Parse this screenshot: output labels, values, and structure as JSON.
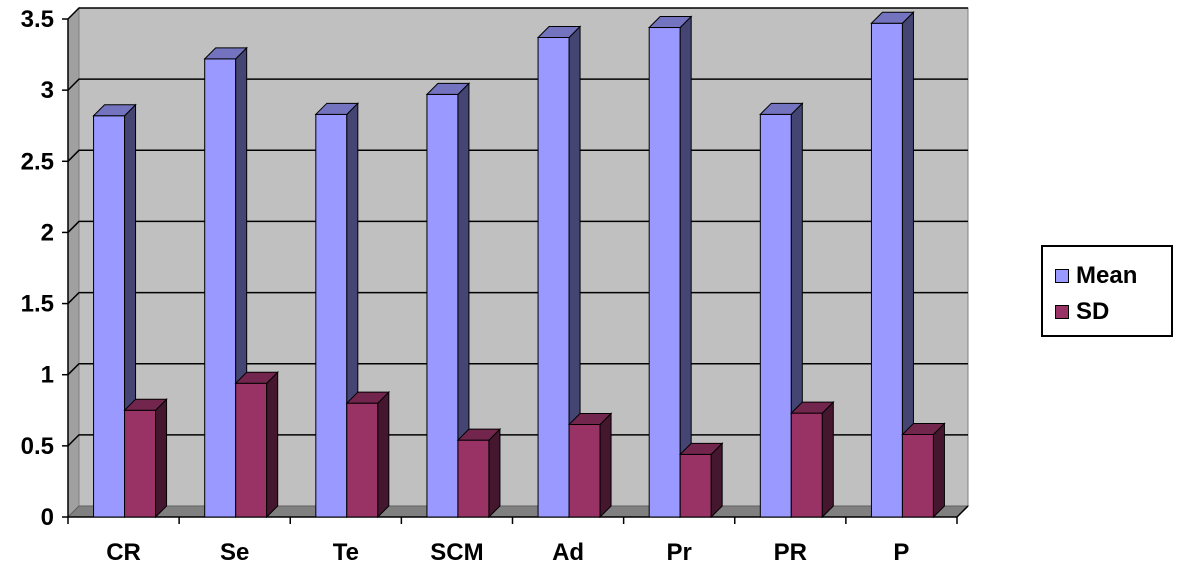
{
  "chart_data": {
    "type": "bar",
    "categories": [
      "CR",
      "Se",
      "Te",
      "SCM",
      "Ad",
      "Pr",
      "PR",
      "P"
    ],
    "series": [
      {
        "name": "Mean",
        "values": [
          2.82,
          3.22,
          2.83,
          2.97,
          3.37,
          3.44,
          2.83,
          3.47
        ],
        "color": "#9999ff"
      },
      {
        "name": "SD",
        "values": [
          0.75,
          0.94,
          0.8,
          0.54,
          0.65,
          0.44,
          0.73,
          0.58
        ],
        "color": "#993366"
      }
    ],
    "title": "",
    "xlabel": "",
    "ylabel": "",
    "ylim": [
      0,
      3.5
    ],
    "yticks": [
      "0",
      "0.5",
      "1",
      "1.5",
      "2",
      "2.5",
      "3",
      "3.5"
    ],
    "grid": true,
    "legend_position": "right",
    "style": "3d-clustered-column",
    "plot_background": "#c0c0c0"
  }
}
